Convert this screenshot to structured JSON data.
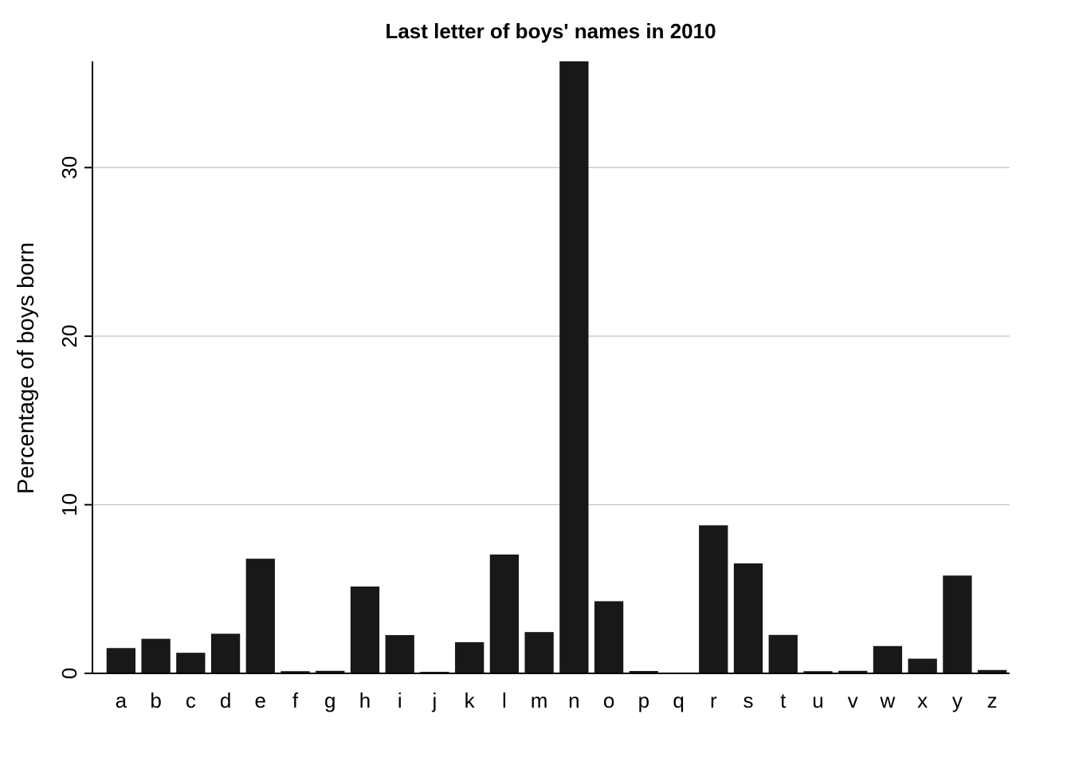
{
  "chart_data": {
    "type": "bar",
    "title": "Last letter of boys' names in 2010",
    "xlabel": "",
    "ylabel": "Percentage of boys born",
    "ylim": [
      0,
      36.3
    ],
    "yticks": [
      0,
      10,
      20,
      30
    ],
    "grid": true,
    "legend": "none",
    "bar_color": "#181818",
    "categories": [
      "a",
      "b",
      "c",
      "d",
      "e",
      "f",
      "g",
      "h",
      "i",
      "j",
      "k",
      "l",
      "m",
      "n",
      "o",
      "p",
      "q",
      "r",
      "s",
      "t",
      "u",
      "v",
      "w",
      "x",
      "y",
      "z"
    ],
    "values": [
      1.5,
      2.05,
      1.22,
      2.35,
      6.8,
      0.13,
      0.15,
      5.15,
      2.27,
      0.09,
      1.85,
      7.05,
      2.45,
      36.3,
      4.28,
      0.14,
      0.04,
      8.78,
      6.52,
      2.28,
      0.13,
      0.15,
      1.62,
      0.87,
      5.8,
      0.2
    ]
  }
}
